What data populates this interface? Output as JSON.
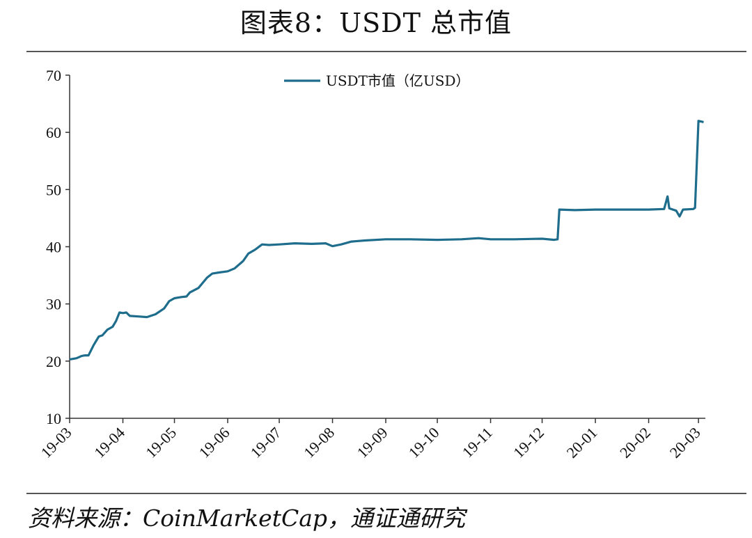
{
  "title": "图表8：USDT 总市值",
  "source": "资料来源：CoinMarketCap，通证通研究",
  "colors": {
    "series": "#1f6d8c",
    "axis": "#333333",
    "rule": "#555555"
  },
  "chart_data": {
    "type": "line",
    "ylim": [
      10,
      70
    ],
    "yticks": [
      10,
      20,
      30,
      40,
      50,
      60,
      70
    ],
    "xlim": [
      "2019-03-01",
      "2020-03-05"
    ],
    "xticks": [
      {
        "label": "19-03",
        "date": "2019-03-01"
      },
      {
        "label": "19-04",
        "date": "2019-04-01"
      },
      {
        "label": "19-05",
        "date": "2019-05-01"
      },
      {
        "label": "19-06",
        "date": "2019-06-01"
      },
      {
        "label": "19-07",
        "date": "2019-07-01"
      },
      {
        "label": "19-08",
        "date": "2019-08-01"
      },
      {
        "label": "19-09",
        "date": "2019-09-01"
      },
      {
        "label": "19-10",
        "date": "2019-10-01"
      },
      {
        "label": "19-11",
        "date": "2019-11-01"
      },
      {
        "label": "19-12",
        "date": "2019-12-01"
      },
      {
        "label": "20-01",
        "date": "2020-01-01"
      },
      {
        "label": "20-02",
        "date": "2020-02-01"
      },
      {
        "label": "20-03",
        "date": "2020-03-01"
      }
    ],
    "legend_position": "top-center",
    "series": [
      {
        "name": "USDT市值（亿USD）",
        "points": [
          [
            "2019-03-01",
            20.3
          ],
          [
            "2019-03-05",
            20.5
          ],
          [
            "2019-03-08",
            20.9
          ],
          [
            "2019-03-10",
            21.0
          ],
          [
            "2019-03-12",
            21.0
          ],
          [
            "2019-03-15",
            22.8
          ],
          [
            "2019-03-18",
            24.3
          ],
          [
            "2019-03-20",
            24.5
          ],
          [
            "2019-03-23",
            25.5
          ],
          [
            "2019-03-26",
            26.0
          ],
          [
            "2019-03-28",
            27.0
          ],
          [
            "2019-03-30",
            28.5
          ],
          [
            "2019-04-01",
            28.4
          ],
          [
            "2019-04-03",
            28.5
          ],
          [
            "2019-04-05",
            27.9
          ],
          [
            "2019-04-10",
            27.8
          ],
          [
            "2019-04-15",
            27.7
          ],
          [
            "2019-04-20",
            28.2
          ],
          [
            "2019-04-25",
            29.2
          ],
          [
            "2019-04-28",
            30.5
          ],
          [
            "2019-05-01",
            31.0
          ],
          [
            "2019-05-05",
            31.2
          ],
          [
            "2019-05-08",
            31.3
          ],
          [
            "2019-05-10",
            32.0
          ],
          [
            "2019-05-15",
            32.8
          ],
          [
            "2019-05-20",
            34.6
          ],
          [
            "2019-05-23",
            35.3
          ],
          [
            "2019-05-27",
            35.5
          ],
          [
            "2019-06-01",
            35.7
          ],
          [
            "2019-06-05",
            36.2
          ],
          [
            "2019-06-10",
            37.5
          ],
          [
            "2019-06-13",
            38.8
          ],
          [
            "2019-06-17",
            39.5
          ],
          [
            "2019-06-21",
            40.4
          ],
          [
            "2019-06-25",
            40.3
          ],
          [
            "2019-07-01",
            40.4
          ],
          [
            "2019-07-10",
            40.6
          ],
          [
            "2019-07-20",
            40.5
          ],
          [
            "2019-07-28",
            40.6
          ],
          [
            "2019-08-01",
            40.1
          ],
          [
            "2019-08-06",
            40.4
          ],
          [
            "2019-08-12",
            40.9
          ],
          [
            "2019-08-20",
            41.1
          ],
          [
            "2019-09-01",
            41.3
          ],
          [
            "2019-09-15",
            41.3
          ],
          [
            "2019-10-01",
            41.2
          ],
          [
            "2019-10-15",
            41.3
          ],
          [
            "2019-10-25",
            41.5
          ],
          [
            "2019-11-01",
            41.3
          ],
          [
            "2019-11-15",
            41.3
          ],
          [
            "2019-12-01",
            41.4
          ],
          [
            "2019-12-08",
            41.2
          ],
          [
            "2019-12-10",
            41.3
          ],
          [
            "2019-12-11",
            46.5
          ],
          [
            "2019-12-20",
            46.4
          ],
          [
            "2020-01-01",
            46.5
          ],
          [
            "2020-01-15",
            46.5
          ],
          [
            "2020-02-01",
            46.5
          ],
          [
            "2020-02-10",
            46.6
          ],
          [
            "2020-02-12",
            48.8
          ],
          [
            "2020-02-13",
            46.7
          ],
          [
            "2020-02-17",
            46.3
          ],
          [
            "2020-02-19",
            45.3
          ],
          [
            "2020-02-21",
            46.5
          ],
          [
            "2020-02-27",
            46.6
          ],
          [
            "2020-02-28",
            46.8
          ],
          [
            "2020-03-01",
            62.0
          ],
          [
            "2020-03-04",
            61.8
          ]
        ]
      }
    ]
  }
}
